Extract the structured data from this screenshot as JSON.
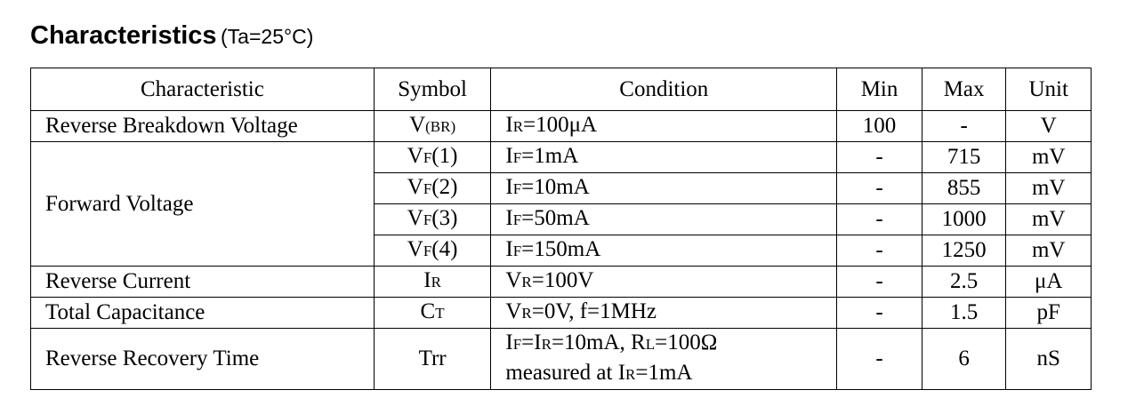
{
  "header": {
    "title": "Characteristics",
    "condition": "(Ta=25°C)"
  },
  "table": {
    "columns": [
      "Characteristic",
      "Symbol",
      "Condition",
      "Min",
      "Max",
      "Unit"
    ],
    "groups": [
      {
        "characteristic": "Reverse Breakdown Voltage",
        "rows": [
          {
            "symbol": [
              "V",
              "(BR)"
            ],
            "condition": [
              [
                "I",
                "R",
                "=100μA"
              ]
            ],
            "min": "100",
            "max": "-",
            "unit": "V"
          }
        ]
      },
      {
        "characteristic": "Forward Voltage",
        "rows": [
          {
            "symbol": [
              "V",
              "F",
              "(1)"
            ],
            "condition": [
              [
                "I",
                "F",
                "=1mA"
              ]
            ],
            "min": "-",
            "max": "715",
            "unit": "mV"
          },
          {
            "symbol": [
              "V",
              "F",
              "(2)"
            ],
            "condition": [
              [
                "I",
                "F",
                "=10mA"
              ]
            ],
            "min": "-",
            "max": "855",
            "unit": "mV"
          },
          {
            "symbol": [
              "V",
              "F",
              "(3)"
            ],
            "condition": [
              [
                "I",
                "F",
                "=50mA"
              ]
            ],
            "min": "-",
            "max": "1000",
            "unit": "mV"
          },
          {
            "symbol": [
              "V",
              "F",
              "(4)"
            ],
            "condition": [
              [
                "I",
                "F",
                "=150mA"
              ]
            ],
            "min": "-",
            "max": "1250",
            "unit": "mV"
          }
        ]
      },
      {
        "characteristic": "Reverse Current",
        "rows": [
          {
            "symbol": [
              "I",
              "R"
            ],
            "condition": [
              [
                "V",
                "R",
                "=100V"
              ]
            ],
            "min": "-",
            "max": "2.5",
            "unit": "μA"
          }
        ]
      },
      {
        "characteristic": "Total Capacitance",
        "rows": [
          {
            "symbol": [
              "C",
              "T"
            ],
            "condition": [
              [
                "V",
                "R",
                "=0V, f=1MHz"
              ]
            ],
            "min": "-",
            "max": "1.5",
            "unit": "pF"
          }
        ]
      },
      {
        "characteristic": "Reverse Recovery Time",
        "rows": [
          {
            "symbol": [
              "Trr"
            ],
            "condition": [
              [
                "I",
                "F",
                "=I",
                "R",
                "=10mA, R",
                "L",
                "=100Ω"
              ],
              [
                "measured at I",
                "R",
                "=1mA"
              ]
            ],
            "min": "-",
            "max": "6",
            "unit": "nS"
          }
        ]
      }
    ]
  }
}
